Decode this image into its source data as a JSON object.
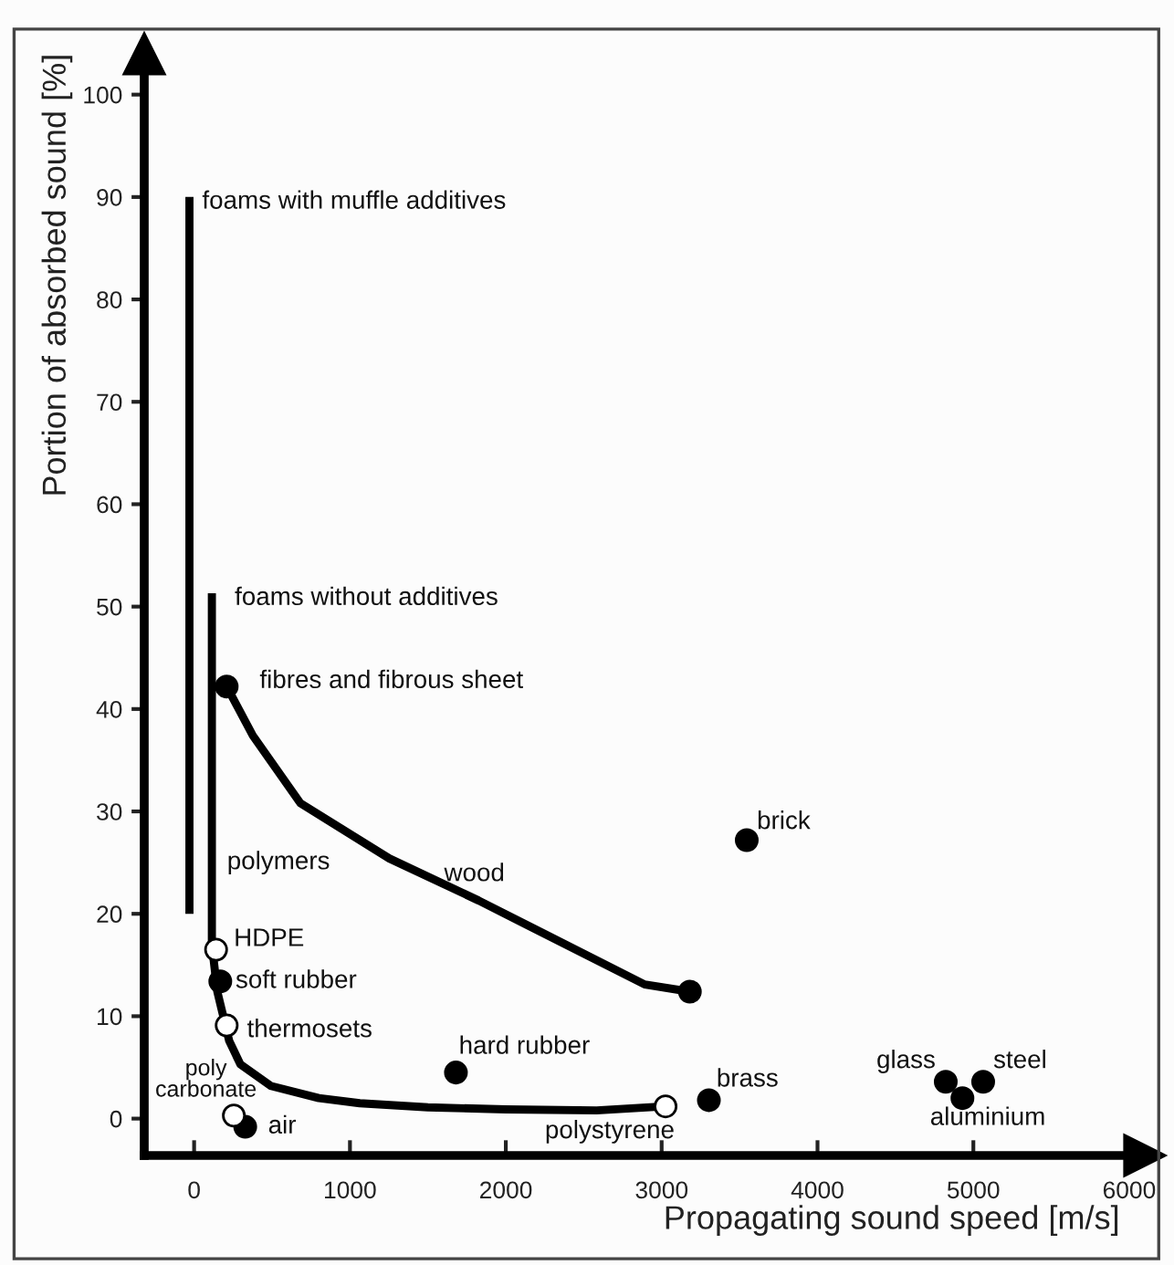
{
  "chart_data": {
    "type": "scatter",
    "xlabel": "Propagating sound speed [m/s]",
    "ylabel": "Portion of absorbed sound [%]",
    "xlim": [
      -320,
      6100
    ],
    "ylim": [
      -3.6,
      104
    ],
    "xticks": [
      0,
      1000,
      2000,
      3000,
      4000,
      5000,
      6000
    ],
    "yticks": [
      0,
      10,
      20,
      30,
      40,
      50,
      60,
      70,
      80,
      90,
      100
    ],
    "grid": false,
    "legend": false,
    "marker": "circle",
    "series": [
      {
        "type": "line",
        "marker": "none",
        "color": "#000000",
        "x": [
          -30,
          -30
        ],
        "values": [
          20,
          90
        ]
      },
      {
        "type": "line",
        "marker": "none",
        "color": "#000000",
        "x": [
          114,
          114,
          149,
          225,
          297,
          491,
          800,
          1063,
          1500,
          2000,
          2583,
          3025
        ],
        "values": [
          51.3,
          17,
          12.4,
          7.6,
          5.3,
          3.2,
          2.0,
          1.5,
          1.1,
          0.9,
          0.8,
          1.2
        ]
      },
      {
        "type": "line",
        "marker": "none",
        "color": "#000000",
        "x": [
          209,
          377,
          682,
          1253,
          1825,
          2891,
          3181
        ],
        "values": [
          42.2,
          37.4,
          30.8,
          25.4,
          21.3,
          13.1,
          12.4
        ]
      },
      {
        "color": "#000000",
        "x": [
          209,
          168,
          328,
          1680,
          3181,
          3303,
          3546,
          4823,
          4930,
          5063
        ],
        "values": [
          42.2,
          13.4,
          -0.8,
          4.5,
          12.4,
          1.8,
          27.2,
          3.6,
          2.0,
          3.6
        ]
      },
      {
        "color": "#ffffff",
        "x": [
          141,
          209,
          255,
          3025
        ],
        "values": [
          16.5,
          9.1,
          0.3,
          1.2
        ]
      }
    ],
    "annotations": [
      {
        "text": "foams with muffle additives",
        "x": -30,
        "y": 90
      },
      {
        "text": "foams without additives",
        "x": 114,
        "y": 51.3
      },
      {
        "text": "fibres and fibrous sheet",
        "x": 209,
        "y": 42.2
      },
      {
        "text": "polymers",
        "x": 114,
        "y": 25
      },
      "wood",
      {
        "text": "HDPE",
        "x": 141,
        "y": 16.5
      },
      {
        "text": "soft rubber",
        "x": 168,
        "y": 13.4
      },
      {
        "text": "thermosets",
        "x": 209,
        "y": 9.1
      },
      {
        "text": "poly\ncarbonate",
        "x": 255,
        "y": 0.3
      },
      {
        "text": "air",
        "x": 328,
        "y": -0.8
      },
      {
        "text": "hard rubber",
        "x": 1680,
        "y": 4.5
      },
      {
        "text": "polystyrene",
        "x": 3025,
        "y": 1.2
      },
      {
        "text": "brass",
        "x": 3303,
        "y": 1.8
      },
      {
        "text": "brick",
        "x": 3546,
        "y": 27.2
      },
      {
        "text": "glass",
        "x": 4823,
        "y": 3.6
      },
      {
        "text": "aluminium",
        "x": 4930,
        "y": 2.0
      },
      {
        "text": "steel",
        "x": 5063,
        "y": 3.6
      }
    ]
  }
}
